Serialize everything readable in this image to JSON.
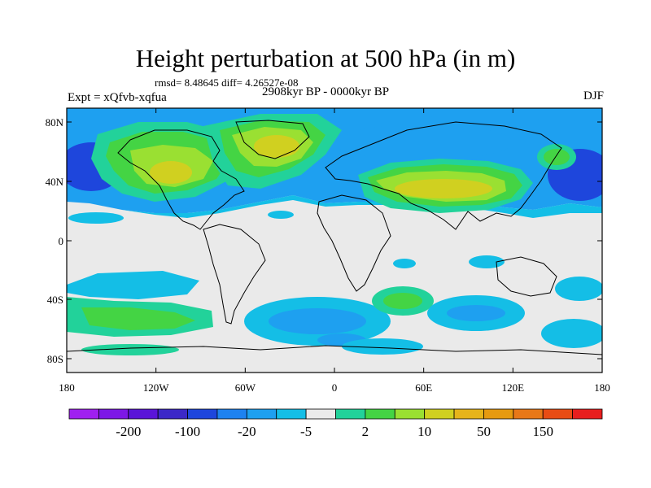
{
  "title": "Height perturbation at 500 hPa (in m)",
  "stats": "rmsd= 8.48645  diff= 4.26527e-08",
  "experiment": "Expt = xQfvb-xqfua",
  "period": "2908kyr BP - 0000kyr BP",
  "season": "DJF",
  "lat_ticks": [
    "80N",
    "40N",
    "0",
    "40S",
    "80S"
  ],
  "lon_ticks": [
    "180",
    "120W",
    "60W",
    "0",
    "60E",
    "120E",
    "180"
  ],
  "colorbar": {
    "colors": [
      "#a020f0",
      "#7d18e6",
      "#5a14d8",
      "#3c28c8",
      "#1e46dc",
      "#1e82f0",
      "#1ea0f0",
      "#14bee6",
      "#eaeaea",
      "#22d29a",
      "#44d444",
      "#9ae032",
      "#d0d020",
      "#e6b41a",
      "#e69a10",
      "#e87818",
      "#e84c14",
      "#e81e1e"
    ],
    "labels": [
      "-200",
      "-100",
      "-20",
      "-5",
      "2",
      "10",
      "50",
      "150"
    ]
  },
  "palette": {
    "neutral": "#eaeaea",
    "lightblue": "#14bee6",
    "blue": "#1ea0f0",
    "deepblue": "#1e46dc",
    "teal": "#22d29a",
    "green": "#44d444",
    "yellowgreen": "#9ae032",
    "yellow": "#d0d020",
    "orange": "#e6b41a"
  }
}
